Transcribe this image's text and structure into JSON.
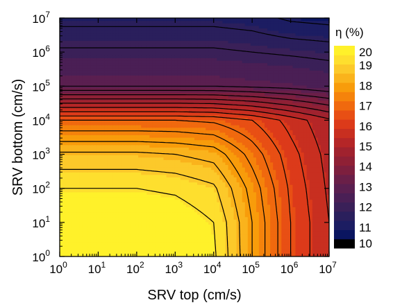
{
  "chart_data": {
    "type": "heatmap",
    "subtype": "contour",
    "xlabel": "SRV top (cm/s)",
    "ylabel": "SRV bottom (cm/s)",
    "x_scale": "log",
    "y_scale": "log",
    "xlim": [
      1,
      10000000
    ],
    "ylim": [
      1,
      10000000
    ],
    "x_ticks": [
      {
        "base": "10",
        "exp": "0"
      },
      {
        "base": "10",
        "exp": "1"
      },
      {
        "base": "10",
        "exp": "2"
      },
      {
        "base": "10",
        "exp": "3"
      },
      {
        "base": "10",
        "exp": "4"
      },
      {
        "base": "10",
        "exp": "5"
      },
      {
        "base": "10",
        "exp": "6"
      },
      {
        "base": "10",
        "exp": "7"
      }
    ],
    "y_ticks": [
      {
        "base": "10",
        "exp": "0"
      },
      {
        "base": "10",
        "exp": "1"
      },
      {
        "base": "10",
        "exp": "2"
      },
      {
        "base": "10",
        "exp": "3"
      },
      {
        "base": "10",
        "exp": "4"
      },
      {
        "base": "10",
        "exp": "5"
      },
      {
        "base": "10",
        "exp": "6"
      },
      {
        "base": "10",
        "exp": "7"
      }
    ],
    "colorbar": {
      "title": "η (%)",
      "min": 10,
      "max": 20,
      "tick_labels": [
        "20",
        "19",
        "18",
        "17",
        "16",
        "15",
        "14",
        "13",
        "12",
        "11",
        "10"
      ],
      "colors": [
        "#000000",
        "#0a1560",
        "#1c1d62",
        "#2a1f5c",
        "#3a2058",
        "#4a1f55",
        "#5a1f50",
        "#6a1f48",
        "#7d1f3e",
        "#8f2035",
        "#a0222e",
        "#b52627",
        "#c82f20",
        "#dc3a1a",
        "#e84f14",
        "#f0690e",
        "#f5830b",
        "#f89c0b",
        "#fab31c",
        "#fcc92a",
        "#fedf2e",
        "#fff12a"
      ]
    },
    "contour_levels": [
      11,
      11.5,
      12,
      13,
      13.5,
      14,
      14.5,
      15,
      15.5,
      16,
      16.5,
      17,
      17.5,
      18,
      18.5,
      19,
      19.5
    ],
    "efficiency_grid_note": "η(%) as a function of log10(SRV top) (x) and log10(SRV bottom) (y)",
    "x_log_values": [
      0,
      1,
      2,
      3,
      4,
      5,
      6,
      7
    ],
    "y_log_values": [
      0,
      1,
      2,
      3,
      4,
      5,
      6,
      7
    ],
    "eta_values_rows_bottom_to_top": [
      [
        20.0,
        20.0,
        20.0,
        19.9,
        19.6,
        18.0,
        16.5,
        15.5
      ],
      [
        20.0,
        20.0,
        20.0,
        19.9,
        19.5,
        18.0,
        16.5,
        15.5
      ],
      [
        19.5,
        19.5,
        19.5,
        19.4,
        19.1,
        17.8,
        16.4,
        15.4
      ],
      [
        18.6,
        18.6,
        18.6,
        18.5,
        18.3,
        17.3,
        16.2,
        15.3
      ],
      [
        17.0,
        17.0,
        17.0,
        17.0,
        16.9,
        16.5,
        15.8,
        15.1
      ],
      [
        13.0,
        13.0,
        13.0,
        13.0,
        13.0,
        12.9,
        12.8,
        12.6
      ],
      [
        12.1,
        12.1,
        12.1,
        12.1,
        12.1,
        12.0,
        11.9,
        11.8
      ],
      [
        11.3,
        11.3,
        11.3,
        11.3,
        11.3,
        11.2,
        10.9,
        10.8
      ]
    ]
  }
}
